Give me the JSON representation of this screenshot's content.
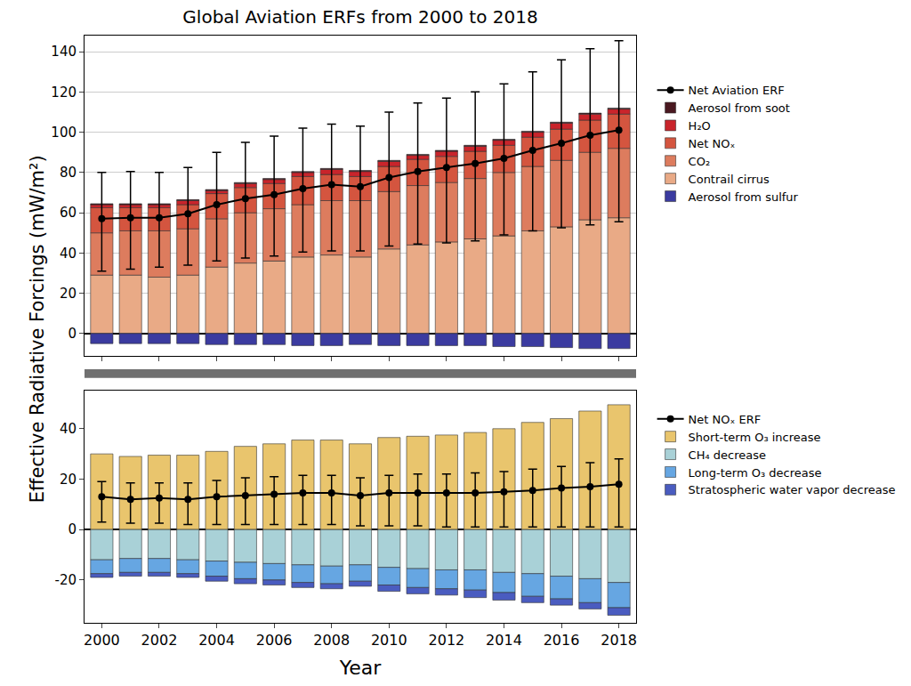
{
  "chart_data": [
    {
      "type": "bar",
      "stacked": true,
      "title": "Global Aviation ERFs from 2000 to 2018",
      "y_label": "Effective Radiative Forcings (mW/m²)",
      "x": [
        2000,
        2001,
        2002,
        2003,
        2004,
        2005,
        2006,
        2007,
        2008,
        2009,
        2010,
        2011,
        2012,
        2013,
        2014,
        2015,
        2016,
        2017,
        2018
      ],
      "xlim": [
        1999.4,
        2018.6
      ],
      "xticks": [
        2000,
        2002,
        2004,
        2006,
        2008,
        2010,
        2012,
        2014,
        2016,
        2018
      ],
      "ylim": [
        -11,
        148
      ],
      "yticks": [
        0,
        20,
        40,
        60,
        80,
        100,
        120,
        140
      ],
      "grid": true,
      "legend": "right",
      "tick_labels": "y",
      "series": [
        {
          "name": "Net Aviation ERF",
          "type": "line",
          "color": "#000000",
          "marker": "circle",
          "values": [
            57,
            57.5,
            57.5,
            59.5,
            64,
            67,
            69,
            72,
            74,
            73,
            77.5,
            80.5,
            82.5,
            84.5,
            87,
            91,
            94.5,
            98.5,
            101
          ],
          "error_plus": [
            23,
            23,
            22.5,
            23,
            26,
            28,
            29,
            30,
            30,
            30,
            32.5,
            34,
            34.5,
            35.5,
            37,
            39,
            41.5,
            43,
            44.5
          ],
          "error_minus": [
            26,
            25.5,
            24.5,
            25.5,
            28,
            29.5,
            30.5,
            31.5,
            33,
            32,
            34,
            36,
            37.5,
            38.5,
            38,
            40,
            42,
            44.5,
            45.5
          ]
        },
        {
          "name": "Aerosol from soot",
          "type": "bar",
          "color": "#4a1820",
          "values": [
            0.5,
            0.5,
            0.5,
            0.5,
            0.5,
            0.5,
            0.5,
            0.5,
            0.5,
            0.5,
            0.5,
            0.5,
            0.5,
            0.5,
            0.5,
            0.5,
            0.5,
            0.5,
            0.5
          ]
        },
        {
          "name": "H₂O",
          "type": "bar",
          "color": "#c9242b",
          "values": [
            1.5,
            1.5,
            1.5,
            2,
            1.5,
            2,
            2,
            2,
            2.5,
            2.5,
            2.5,
            2,
            2.5,
            2.5,
            2.5,
            2.5,
            3,
            3,
            2.5
          ]
        },
        {
          "name": "Net NOₓ",
          "type": "bar",
          "color": "#d4553f",
          "values": [
            12.5,
            11.5,
            11.5,
            12,
            12.5,
            12.5,
            12.5,
            14,
            13,
            12,
            12.5,
            13,
            13,
            13.5,
            13.5,
            14.5,
            15.5,
            16,
            17
          ]
        },
        {
          "name": "CO₂",
          "type": "bar",
          "color": "#dd7c5e",
          "values": [
            21,
            22,
            23,
            23,
            24,
            25,
            26,
            26,
            27,
            28,
            28.5,
            29.5,
            29.5,
            30,
            31.5,
            32,
            33,
            33.5,
            34.5
          ]
        },
        {
          "name": "Contrail cirrus",
          "type": "bar",
          "color": "#e9aa86",
          "values": [
            29,
            29,
            28,
            29,
            33,
            35,
            36,
            38,
            39,
            38,
            42,
            44,
            45.5,
            47,
            48.5,
            51,
            53,
            56.5,
            57.5
          ]
        },
        {
          "name": "Aerosol from sulfur",
          "type": "bar",
          "color": "#3b3ba0",
          "values": [
            -5,
            -5,
            -5,
            -5,
            -5.5,
            -5.5,
            -5.5,
            -6,
            -6,
            -5.5,
            -6,
            -6,
            -6,
            -6,
            -6.5,
            -6.5,
            -7,
            -7.5,
            -7.5
          ]
        }
      ]
    },
    {
      "type": "bar",
      "stacked": true,
      "x_label": "Year",
      "x": [
        2000,
        2001,
        2002,
        2003,
        2004,
        2005,
        2006,
        2007,
        2008,
        2009,
        2010,
        2011,
        2012,
        2013,
        2014,
        2015,
        2016,
        2017,
        2018
      ],
      "xlim": [
        1999.4,
        2018.6
      ],
      "xticks": [
        2000,
        2002,
        2004,
        2006,
        2008,
        2010,
        2012,
        2014,
        2016,
        2018
      ],
      "ylim": [
        -37,
        55
      ],
      "yticks": [
        -20,
        0,
        20,
        40
      ],
      "grid": false,
      "legend": "right",
      "series": [
        {
          "name": "Net NOₓ ERF",
          "type": "line",
          "color": "#000000",
          "marker": "circle",
          "values": [
            13,
            12,
            12.5,
            12,
            13,
            13.5,
            14,
            14.5,
            14.5,
            13.5,
            14.5,
            14.5,
            14.5,
            14.5,
            15,
            15.5,
            16.5,
            17,
            18
          ],
          "error_plus": [
            6,
            6.5,
            6,
            6.5,
            6.5,
            7,
            7,
            7,
            7,
            7,
            7,
            7.5,
            7.5,
            8,
            8,
            8.5,
            8.5,
            9.5,
            10
          ],
          "error_minus": [
            10,
            9.5,
            10,
            10,
            11,
            11.5,
            12,
            12.5,
            12.5,
            12,
            13,
            13,
            13.5,
            13.5,
            14,
            14.5,
            15.5,
            16,
            17
          ]
        },
        {
          "name": "Short-term O₃ increase",
          "type": "bar",
          "color": "#e9c56d",
          "values": [
            30,
            29,
            29.5,
            29.5,
            31,
            33,
            34,
            35.5,
            35.5,
            34,
            36.5,
            37,
            37.5,
            38.5,
            40,
            42.5,
            44,
            47,
            49.5
          ]
        },
        {
          "name": "CH₄ decrease",
          "type": "bar",
          "color": "#a9d1d7",
          "values": [
            -12,
            -11.5,
            -11.5,
            -12,
            -12.5,
            -13,
            -13.5,
            -14,
            -14.5,
            -14,
            -15,
            -15.5,
            -16,
            -16,
            -17,
            -17.5,
            -18.5,
            -19.5,
            -21
          ]
        },
        {
          "name": "Long-term O₃ decrease",
          "type": "bar",
          "color": "#66a6e2",
          "values": [
            -5.5,
            -5.5,
            -5.5,
            -5.5,
            -6,
            -6.5,
            -6.5,
            -7,
            -7,
            -6.5,
            -7,
            -7.5,
            -7.5,
            -8,
            -8,
            -9,
            -9,
            -9.5,
            -10
          ]
        },
        {
          "name": "Stratospheric water vapor decrease",
          "type": "bar",
          "color": "#4a5cc0",
          "values": [
            -1.5,
            -1.5,
            -1.5,
            -1.5,
            -2,
            -2,
            -2,
            -2,
            -2,
            -2,
            -2.5,
            -2.5,
            -2.5,
            -3,
            -3,
            -2.5,
            -2.5,
            -2.5,
            -3
          ]
        }
      ]
    }
  ]
}
